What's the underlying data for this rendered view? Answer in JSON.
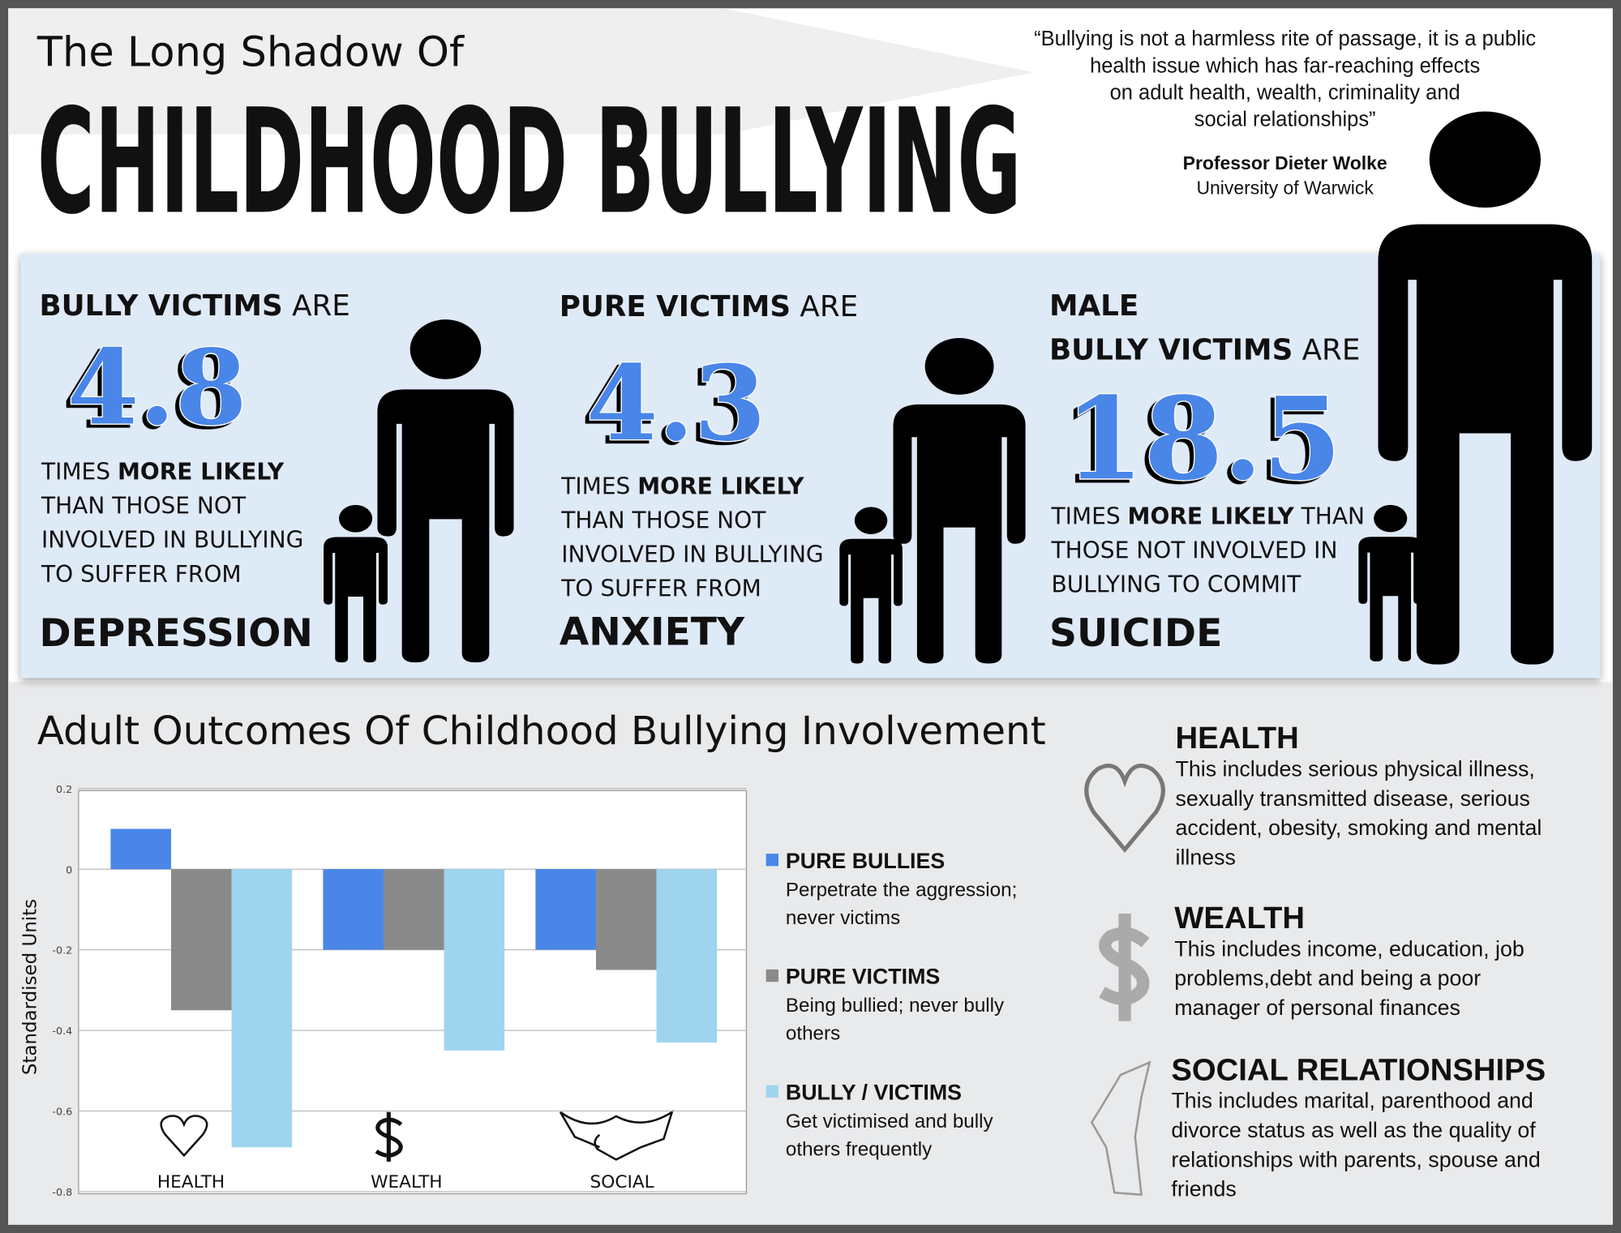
{
  "header": {
    "subtitle": "The Long Shadow Of",
    "title": "CHILDHOOD BULLYING"
  },
  "quote": {
    "lines": [
      "“Bullying is not a harmless rite of passage, it is a public",
      "health issue which has far-reaching effects",
      "on adult health, wealth, criminality and",
      "social relationships”"
    ],
    "author": "Professor Dieter Wolke",
    "affiliation": "University of Warwick"
  },
  "stats": [
    {
      "lead_bold": "BULLY VICTIMS",
      "lead": "ARE",
      "number": 4.8,
      "first_line": [
        "TIMES",
        "MORE LIKELY"
      ],
      "lines": [
        "THAN THOSE NOT",
        "INVOLVED IN BULLYING",
        "TO SUFFER FROM"
      ],
      "outcome": "DEPRESSION"
    },
    {
      "lead_bold": "PURE VICTIMS",
      "lead": "ARE",
      "number": 4.3,
      "first_line": [
        "TIMES",
        "MORE LIKELY"
      ],
      "lines": [
        "THAN THOSE NOT",
        "INVOLVED IN BULLYING",
        "TO SUFFER FROM"
      ],
      "outcome": "ANXIETY"
    },
    {
      "lead_top": "MALE",
      "lead_bold": "BULLY VICTIMS",
      "lead": "ARE",
      "number": 18.5,
      "first_line": [
        "TIMES",
        "MORE LIKELY",
        "THAN"
      ],
      "lines": [
        "THOSE NOT INVOLVED IN",
        "BULLYING TO COMMIT"
      ],
      "outcome": "SUICIDE"
    }
  ],
  "chart_data": {
    "type": "bar",
    "title": "Adult Outcomes Of Childhood Bullying Involvement",
    "y_label": "Standardised Units",
    "categories": [
      "HEALTH",
      "WEALTH",
      "SOCIAL"
    ],
    "series": [
      {
        "name": "PURE BULLIES",
        "description": [
          "Perpetrate the aggression;",
          "never victims"
        ],
        "color": "#4a86e8",
        "values": [
          0.1,
          -0.2,
          -0.2
        ]
      },
      {
        "name": "PURE VICTIMS",
        "description": [
          "Being bullied; never bully",
          "others"
        ],
        "color": "#8a8a8a",
        "values": [
          -0.35,
          -0.2,
          -0.25
        ]
      },
      {
        "name": "BULLY / VICTIMS",
        "description": [
          "Get victimised and bully",
          "others frequently"
        ],
        "color": "#9ed4ee",
        "values": [
          -0.69,
          -0.45,
          -0.43
        ]
      }
    ],
    "ylim": [
      -0.8,
      0.2
    ],
    "yticks": [
      0.2,
      0,
      -0.2,
      -0.4,
      -0.6,
      -0.8
    ],
    "grid": true
  },
  "outcomes": [
    {
      "title": "HEALTH",
      "lines": [
        "This includes serious physical illness,",
        "sexually transmitted disease, serious",
        "accident, obesity, smoking and mental",
        "illness"
      ]
    },
    {
      "title": "WEALTH",
      "lines": [
        "This includes income, education, job",
        "problems,debt and being a poor",
        "manager of personal finances"
      ]
    },
    {
      "title": "SOCIAL RELATIONSHIPS",
      "lines": [
        "This includes marital, parenthood and",
        "divorce status as well as the quality of",
        "relationships with parents, spouse and",
        "friends"
      ]
    }
  ]
}
